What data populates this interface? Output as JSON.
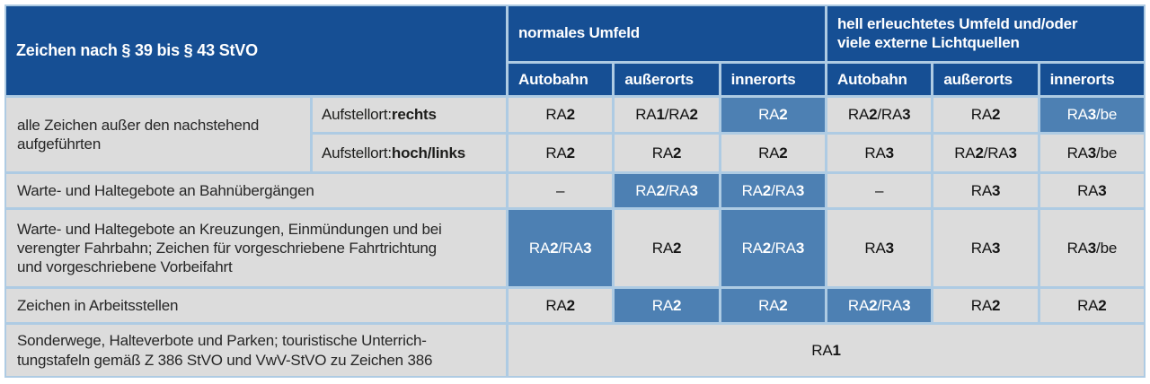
{
  "colors": {
    "header_blue": "#164f94",
    "highlight_blue": "#4d80b3",
    "cell_gray": "#dcdcdc",
    "grid_blue": "#aecbe3"
  },
  "table": {
    "title": "Zeichen nach § 39 bis § 43 StVO",
    "group_headers": [
      {
        "label": "normales Umfeld"
      },
      {
        "label": "hell erleuchtetes Umfeld und/oder\nviele externe Lichtquellen"
      }
    ],
    "col_headers": [
      "Autobahn",
      "außerorts",
      "innerorts",
      "Autobahn",
      "außerorts",
      "innerorts"
    ],
    "rows": [
      {
        "label": "alle Zeichen außer den nachstehend\naufgeführten",
        "sub_rows": [
          {
            "prefix": "Aufstellort: ",
            "bold": "rechts",
            "cells": [
              {
                "v": "RA2"
              },
              {
                "v": "RA1/RA2"
              },
              {
                "v": "RA2",
                "hl": true
              },
              {
                "v": "RA2/RA3"
              },
              {
                "v": "RA2"
              },
              {
                "v": "RA3/be",
                "hl": true
              }
            ]
          },
          {
            "prefix": "Aufstellort: ",
            "bold": "hoch/links",
            "cells": [
              {
                "v": "RA2"
              },
              {
                "v": "RA2"
              },
              {
                "v": "RA2"
              },
              {
                "v": "RA3"
              },
              {
                "v": "RA2/RA3"
              },
              {
                "v": "RA3/be"
              }
            ]
          }
        ]
      },
      {
        "label": "Warte- und Haltegebote an Bahnübergängen",
        "cells": [
          {
            "v": "–"
          },
          {
            "v": "RA2/RA3",
            "hl": true
          },
          {
            "v": "RA2/RA3",
            "hl": true
          },
          {
            "v": "–"
          },
          {
            "v": "RA3"
          },
          {
            "v": "RA3"
          }
        ]
      },
      {
        "label": "Warte- und Haltegebote an Kreuzungen, Einmündungen und bei\nverengter Fahrbahn; Zeichen für vorgeschriebene Fahrtrichtung\nund vorgeschriebene Vorbeifahrt",
        "cells": [
          {
            "v": "RA2/RA3",
            "hl": true
          },
          {
            "v": "RA2"
          },
          {
            "v": "RA2/RA3",
            "hl": true
          },
          {
            "v": "RA3"
          },
          {
            "v": "RA3"
          },
          {
            "v": "RA3/be"
          }
        ]
      },
      {
        "label": "Zeichen in Arbeitsstellen",
        "cells": [
          {
            "v": "RA2"
          },
          {
            "v": "RA2",
            "hl": true
          },
          {
            "v": "RA2",
            "hl": true
          },
          {
            "v": "RA2/RA3",
            "hl": true
          },
          {
            "v": "RA2"
          },
          {
            "v": "RA2"
          }
        ]
      },
      {
        "label": "Sonderwege, Halteverbote und Parken; touristische Unterrich-\ntungstafeln gemäß Z 386 StVO und VwV-StVO zu Zeichen 386",
        "span_value": "RA1"
      }
    ]
  }
}
